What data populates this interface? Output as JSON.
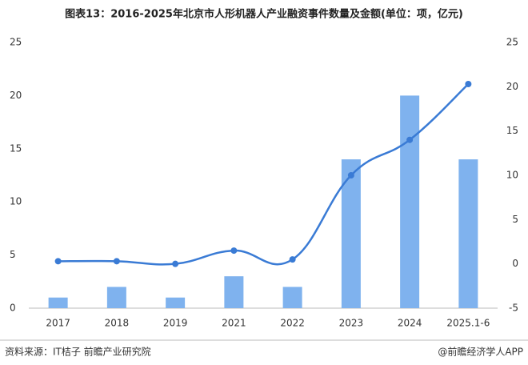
{
  "chart_data": {
    "type": "bar_line",
    "title": "图表13：2016-2025年北京市人形机器人产业融资事件数量及金额(单位：项，亿元)",
    "categories": [
      "2017",
      "2018",
      "2019",
      "2021",
      "2022",
      "2023",
      "2024",
      "2025.1-6"
    ],
    "series": [
      {
        "type": "bar",
        "color": "#7fb2ee",
        "values": [
          1,
          2,
          1,
          3,
          2,
          14,
          20,
          14
        ]
      },
      {
        "type": "line",
        "axis": "y2",
        "color": "#3a7bd5",
        "values": [
          0.3,
          0.3,
          0,
          1.5,
          0.5,
          10,
          14,
          20.3
        ]
      }
    ],
    "ylim": [
      0,
      25
    ],
    "yticks": [
      0,
      5,
      10,
      15,
      20,
      25
    ],
    "y2lim": [
      -5,
      25
    ],
    "y2ticks": [
      -5,
      0,
      5,
      10,
      15,
      20,
      25
    ],
    "source": "资料来源：IT桔子 前瞻产业研究院",
    "credit": "@前瞻经济学人APP"
  }
}
